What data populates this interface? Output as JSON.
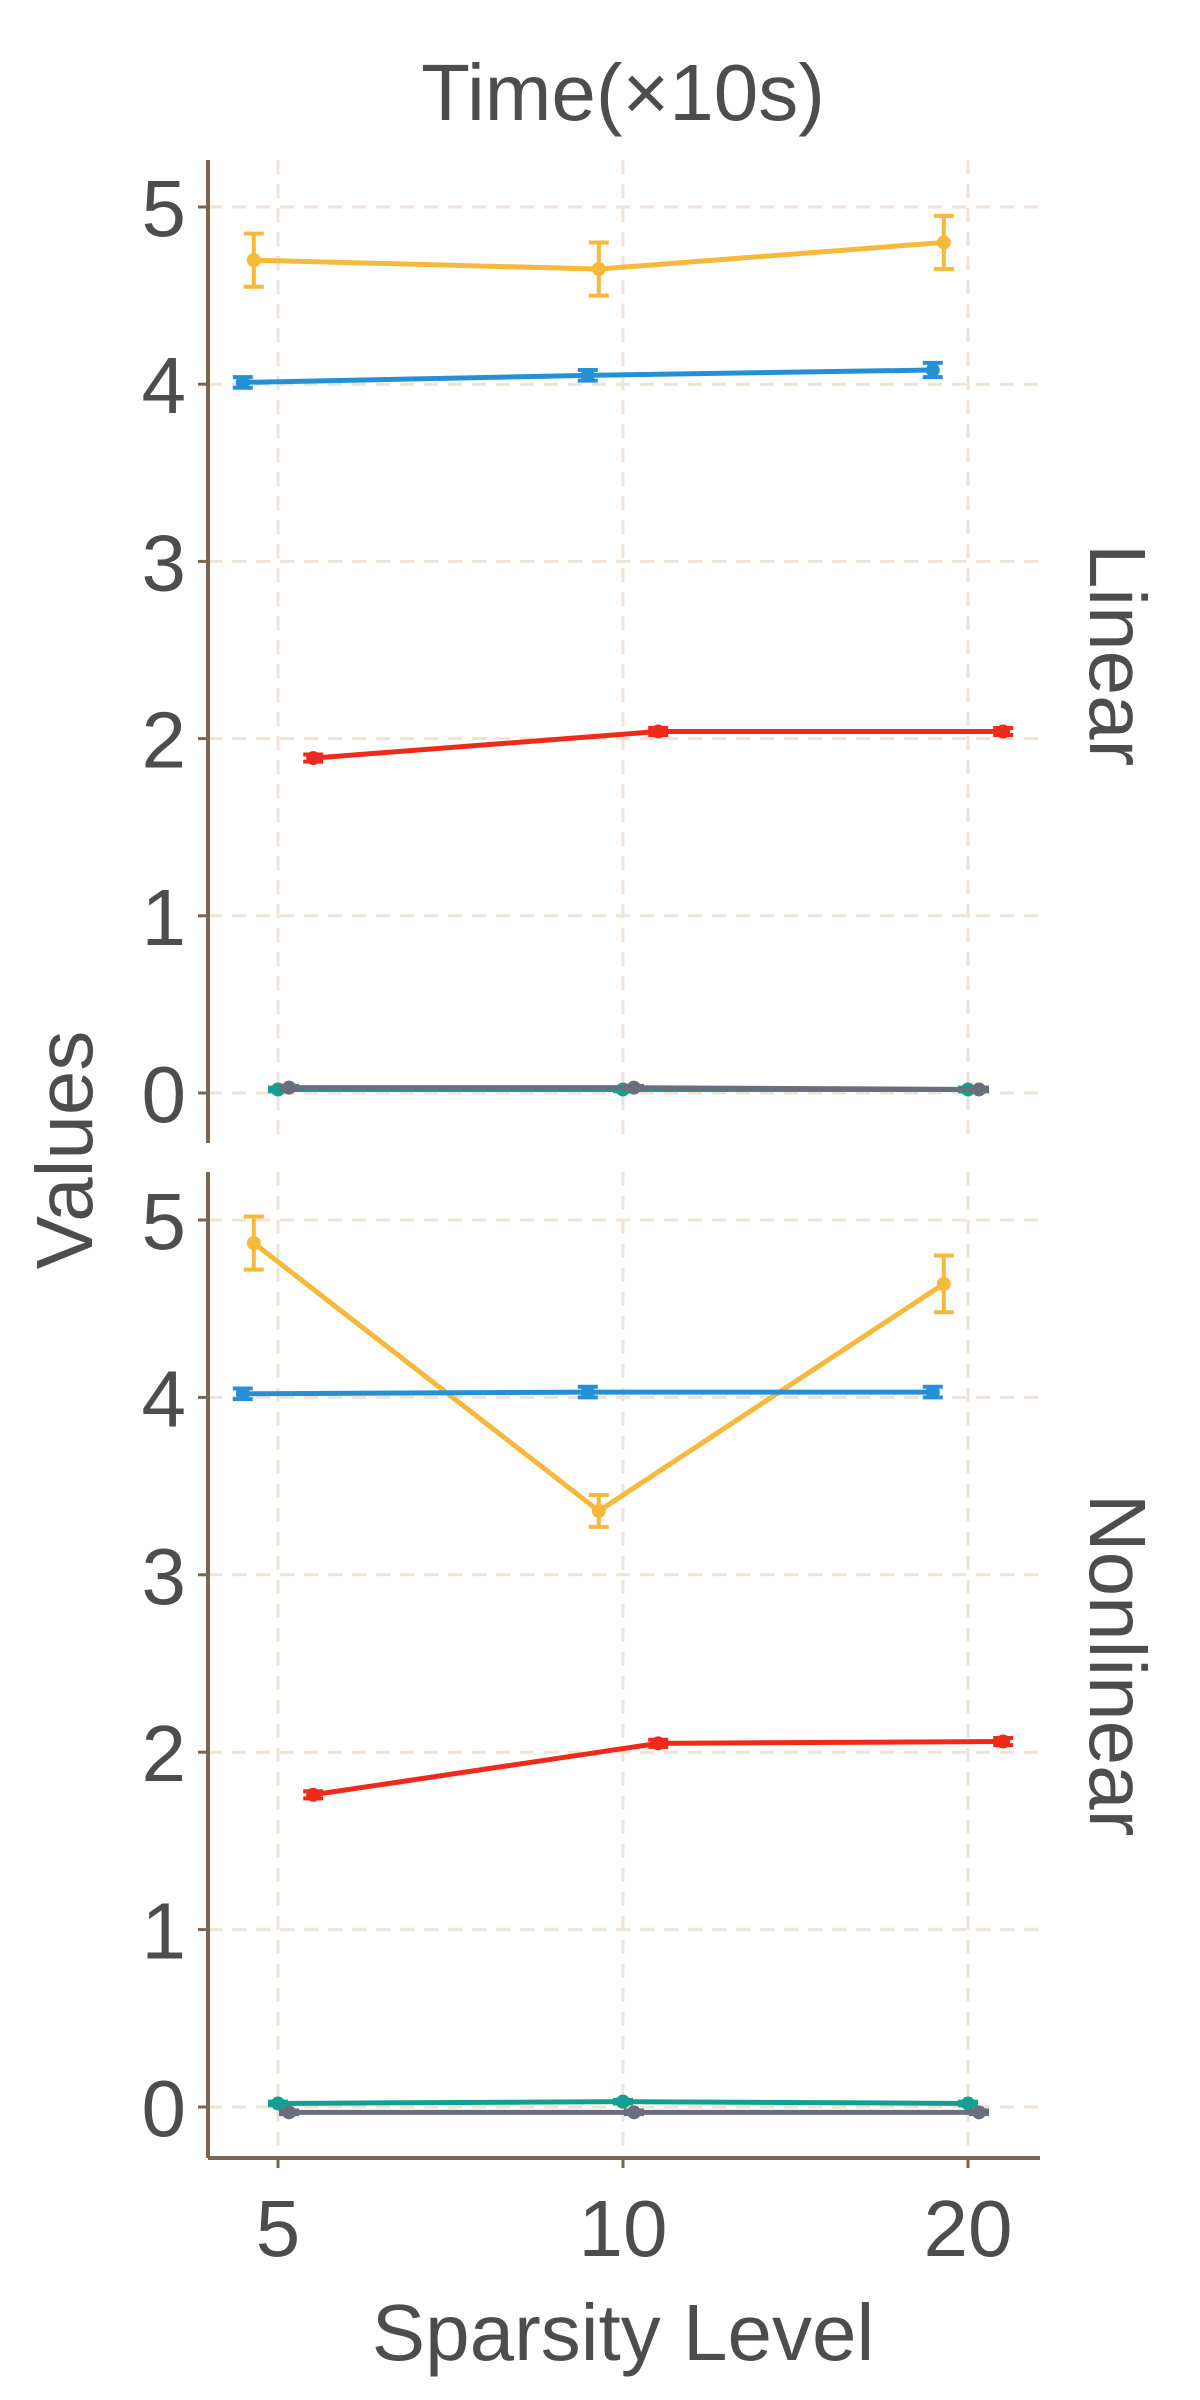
{
  "chart_data": {
    "type": "line",
    "title": "Time(×10s)",
    "xlabel": "Sparsity Level",
    "ylabel": "Values",
    "x_categories": [
      "5",
      "10",
      "20"
    ],
    "y_ticks": [
      0,
      1,
      2,
      3,
      4,
      5
    ],
    "ylim": [
      -0.28,
      5.28
    ],
    "grid": true,
    "legend": "none",
    "colors": {
      "orange": "#F6B93B",
      "blue": "#2690D6",
      "red": "#EE2B1B",
      "teal": "#13A08E",
      "gray": "#6A6E7D",
      "axis": "#7a6650",
      "grid": "#efe3d8"
    },
    "panels": [
      {
        "label": "Linear",
        "series": [
          {
            "color": "orange",
            "dodge": -0.22,
            "values": [
              4.7,
              4.65,
              4.8
            ],
            "errors": [
              0.15,
              0.15,
              0.15
            ]
          },
          {
            "color": "blue",
            "dodge": -0.32,
            "values": [
              4.01,
              4.05,
              4.08
            ],
            "errors": [
              0.03,
              0.03,
              0.04
            ]
          },
          {
            "color": "red",
            "dodge": 0.32,
            "values": [
              1.89,
              2.04,
              2.04
            ],
            "errors": [
              0.02,
              0.02,
              0.02
            ]
          },
          {
            "color": "teal",
            "dodge": 0.0,
            "values": [
              0.02,
              0.02,
              0.02
            ],
            "errors": [
              0.01,
              0.01,
              0.01
            ]
          },
          {
            "color": "gray",
            "dodge": 0.1,
            "values": [
              0.03,
              0.03,
              0.02
            ],
            "errors": [
              0.01,
              0.01,
              0.01
            ]
          }
        ]
      },
      {
        "label": "Nonlinear",
        "series": [
          {
            "color": "orange",
            "dodge": -0.22,
            "values": [
              4.87,
              3.36,
              4.64
            ],
            "errors": [
              0.15,
              0.09,
              0.16
            ]
          },
          {
            "color": "blue",
            "dodge": -0.32,
            "values": [
              4.02,
              4.03,
              4.03
            ],
            "errors": [
              0.03,
              0.03,
              0.03
            ]
          },
          {
            "color": "red",
            "dodge": 0.32,
            "values": [
              1.76,
              2.05,
              2.06
            ],
            "errors": [
              0.02,
              0.02,
              0.02
            ]
          },
          {
            "color": "teal",
            "dodge": 0.0,
            "values": [
              0.02,
              0.03,
              0.02
            ],
            "errors": [
              0.01,
              0.01,
              0.01
            ]
          },
          {
            "color": "gray",
            "dodge": 0.1,
            "values": [
              -0.03,
              -0.03,
              -0.03
            ],
            "errors": [
              0.01,
              0.01,
              0.01
            ]
          }
        ]
      }
    ]
  }
}
